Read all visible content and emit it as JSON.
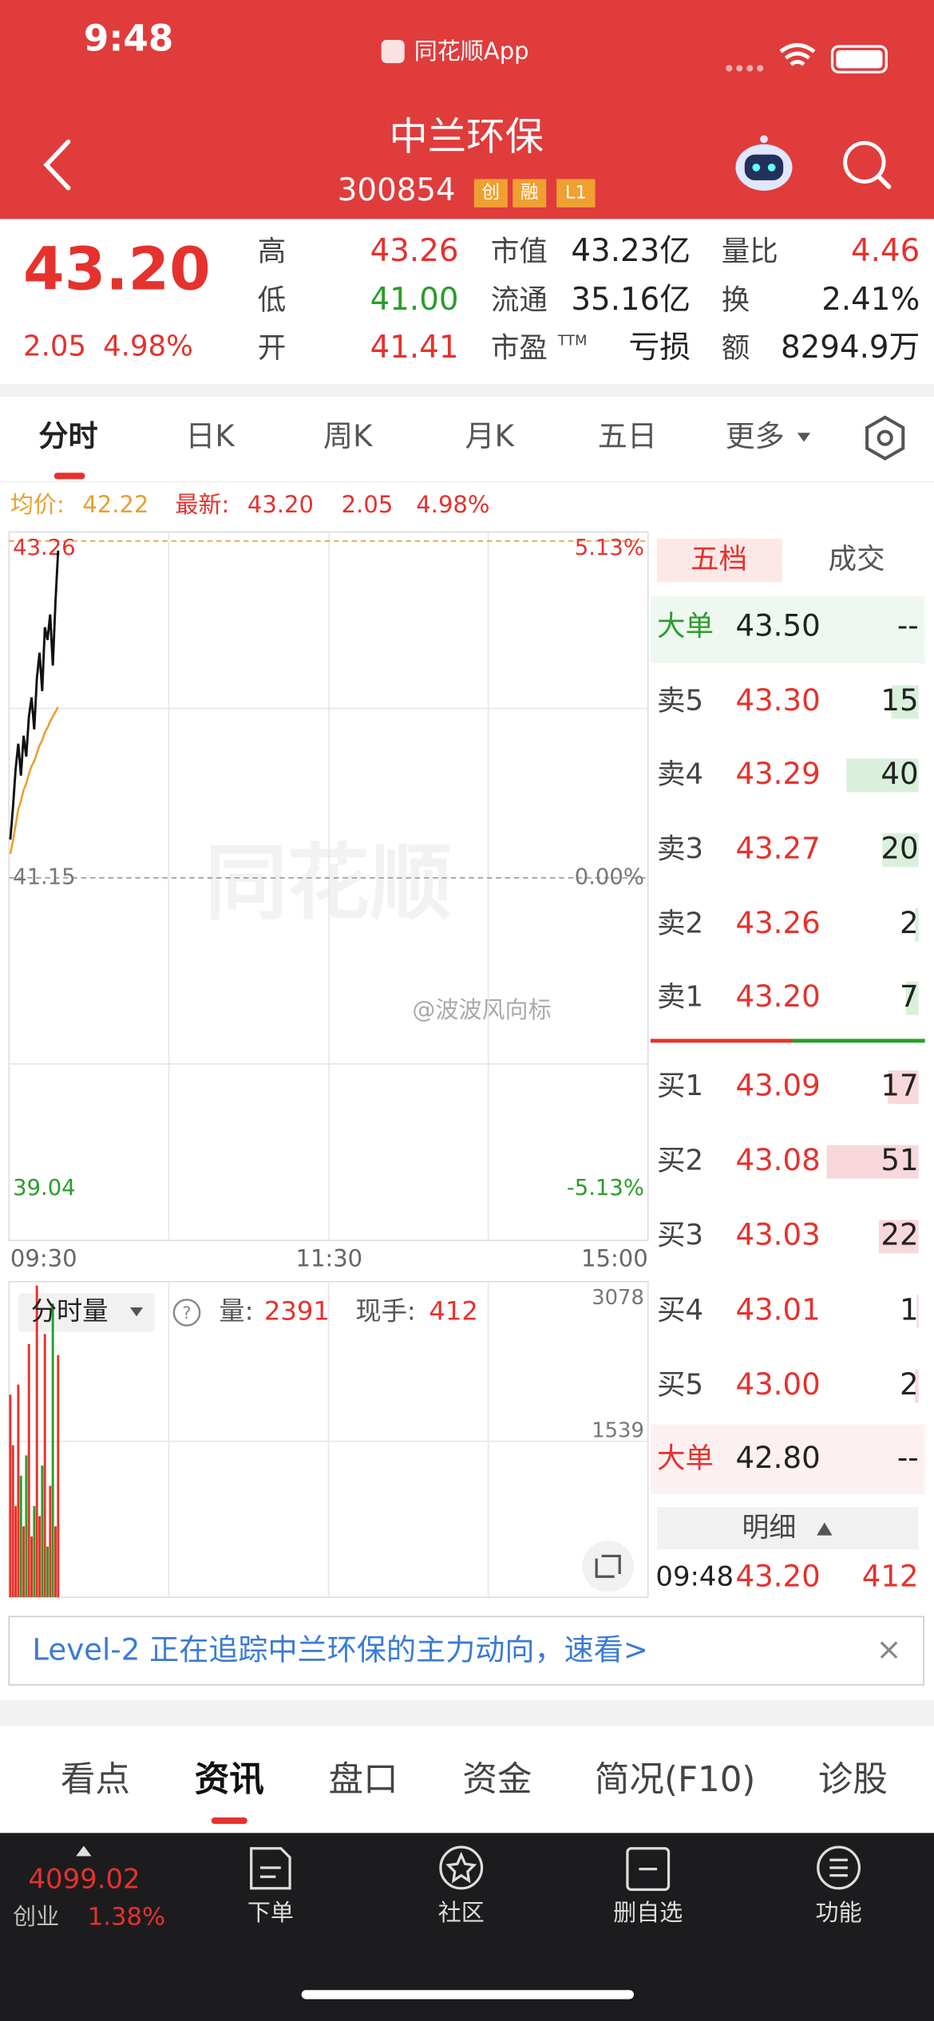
{
  "status_bar": {
    "time": "9:48",
    "app": "同花顺App"
  },
  "header": {
    "title": "中兰环保",
    "code": "300854",
    "tags": [
      "创",
      "融",
      "L1"
    ]
  },
  "quote": {
    "price": "43.20",
    "change": "2.05",
    "change_pct": "4.98%",
    "stats": [
      {
        "label": "高",
        "value": "43.26"
      },
      {
        "label": "低",
        "value": "41.00"
      },
      {
        "label": "开",
        "value": "41.41"
      },
      {
        "label": "市值",
        "value": "43.23亿"
      },
      {
        "label": "流通",
        "value": "35.16亿"
      },
      {
        "label": "市盈",
        "sup": "TTM",
        "value": "亏损"
      },
      {
        "label": "量比",
        "value": "4.46"
      },
      {
        "label": "换",
        "value": "2.41%"
      },
      {
        "label": "额",
        "value": "8294.9万"
      }
    ]
  },
  "period_tabs": [
    "分时",
    "日K",
    "周K",
    "月K",
    "五日",
    "更多"
  ],
  "summary": {
    "avg_label": "均价:",
    "avg": "42.22",
    "last_label": "最新:",
    "last": "43.20",
    "change": "2.05",
    "change_pct": "4.98%"
  },
  "price_chart": {
    "ylim": [
      39.04,
      43.26
    ],
    "yticks": [
      43.26,
      41.15,
      39.04
    ],
    "pct_labels": [
      "5.13%",
      "0.00%",
      "-5.13%"
    ],
    "xlim": [
      0,
      240
    ],
    "xticks": [
      {
        "value": 0,
        "label": "09:30"
      },
      {
        "value": 120,
        "label": "11:30"
      },
      {
        "value": 240,
        "label": "15:00"
      }
    ],
    "price": [
      41.39,
      41.59,
      41.83,
      41.99,
      41.79,
      42.04,
      41.91,
      42.16,
      42.28,
      42.08,
      42.4,
      42.56,
      42.32,
      42.72,
      42.64,
      42.8,
      42.48,
      42.88,
      43.2
    ],
    "avg": [
      41.3,
      41.38,
      41.48,
      41.58,
      41.63,
      41.7,
      41.74,
      41.8,
      41.85,
      41.88,
      41.93,
      41.98,
      42.01,
      42.06,
      42.09,
      42.13,
      42.16,
      42.19,
      42.22
    ],
    "watermark": "同花顺",
    "credit": "@波波风向标"
  },
  "volume_chart": {
    "title": "分时量",
    "volume_label": "量:",
    "volume": "2391",
    "hand_label": "现手:",
    "hand": "412",
    "ylim": [
      0,
      3078
    ],
    "yticks": [
      3078,
      1539
    ],
    "values": [
      2000,
      1500,
      900,
      2100,
      1200,
      700,
      1400,
      2500,
      600,
      900,
      3078,
      800,
      1300,
      2600,
      500,
      1100,
      2900,
      700,
      2391
    ]
  },
  "order_book": {
    "tabs": [
      "五档",
      "成交"
    ],
    "rows": [
      {
        "label": "大单",
        "price": "43.50",
        "volume": "--"
      },
      {
        "label": "卖5",
        "price": "43.30",
        "volume": 15
      },
      {
        "label": "卖4",
        "price": "43.29",
        "volume": 40
      },
      {
        "label": "卖3",
        "price": "43.27",
        "volume": 20
      },
      {
        "label": "卖2",
        "price": "43.26",
        "volume": 2
      },
      {
        "label": "卖1",
        "price": "43.20",
        "volume": 7
      },
      {
        "label": "买1",
        "price": "43.09",
        "volume": 17
      },
      {
        "label": "买2",
        "price": "43.08",
        "volume": 51
      },
      {
        "label": "买3",
        "price": "43.03",
        "volume": 22
      },
      {
        "label": "买4",
        "price": "43.01",
        "volume": 1
      },
      {
        "label": "买5",
        "price": "43.00",
        "volume": 2
      },
      {
        "label": "大单",
        "price": "42.80",
        "volume": "--"
      }
    ],
    "detail": "明细",
    "trade": {
      "time": "09:48",
      "price": "43.20",
      "volume": "412"
    }
  },
  "banner": "Level-2 正在追踪中兰环保的主力动向，速看>",
  "content_tabs": [
    "看点",
    "资讯",
    "盘口",
    "资金",
    "简况(F10)",
    "诊股"
  ],
  "bottom_nav": {
    "index_value": "4099.02",
    "index_name": "创业",
    "index_change": "1.38%",
    "items": [
      "下单",
      "社区",
      "删自选",
      "功能"
    ]
  }
}
